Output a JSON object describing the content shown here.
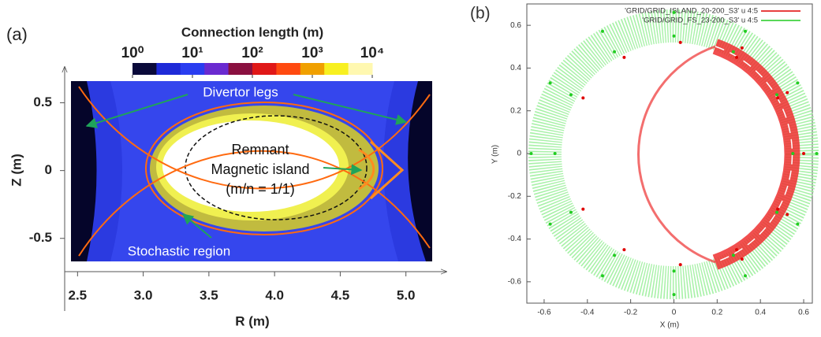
{
  "chart_data": [
    {
      "type": "image-map",
      "panel_label": "(a)",
      "xlabel": "R (m)",
      "ylabel": "Z (m)",
      "xlim": [
        2.45,
        5.2
      ],
      "xticks": [
        2.5,
        {
          "value": 3,
          "label": "3.0"
        },
        3.5,
        {
          "value": 4,
          "label": "4.0"
        },
        4.5,
        {
          "value": 5,
          "label": "5.0"
        }
      ],
      "ylim": [
        -0.67,
        0.66
      ],
      "yticks": [
        0.5,
        0,
        -0.5
      ],
      "colorbar": {
        "title": "Connection length (m)",
        "scale": "log",
        "clim": [
          1,
          10000
        ],
        "ticks": [
          {
            "value": 1,
            "label": "10⁰"
          },
          {
            "value": 10,
            "label": "10¹"
          },
          {
            "value": 100,
            "label": "10²"
          },
          {
            "value": 1000,
            "label": "10³"
          },
          {
            "value": 10000,
            "label": "10⁴"
          }
        ],
        "colors": [
          "#0a0a3a",
          "#1e2ad8",
          "#2a3df0",
          "#6a2ad0",
          "#8a1040",
          "#e01818",
          "#ff4a10",
          "#f0a000",
          "#f8f020",
          "#fff8b0"
        ]
      },
      "annotations": [
        "Divertor legs",
        "Remnant",
        "Magnetic island",
        "(m/n = 1/1)",
        "Stochastic region"
      ]
    },
    {
      "type": "scatter",
      "panel_label": "(b)",
      "xlabel": "X (m)",
      "ylabel": "Y (m)",
      "xlim": [
        -0.68,
        0.64
      ],
      "xticks": [
        -0.6,
        -0.4,
        -0.2,
        0,
        0.2,
        0.4,
        0.6
      ],
      "ylim": [
        -0.7,
        0.7
      ],
      "yticks": [
        0.6,
        0.4,
        0.2,
        0,
        -0.2,
        -0.4,
        -0.6
      ],
      "legend": "upper right",
      "series": [
        {
          "name": "'GRID/GRID_ISLAND_20-200_S3' u 4:5",
          "color": "#e00000",
          "x": [
            -0.42,
            -0.23,
            0.03,
            0.29,
            0.48,
            0.55,
            0.48,
            0.29,
            0.03,
            -0.23,
            -0.42,
            0.315,
            0.524,
            0.6,
            0.524,
            0.315
          ],
          "values": [
            -0.26,
            -0.45,
            -0.52,
            -0.45,
            -0.26,
            0,
            0.26,
            0.45,
            0.52,
            0.45,
            0.26,
            -0.494,
            -0.285,
            0,
            0.285,
            0.494
          ]
        },
        {
          "name": "'GRID/GRID_FS_23-200_S3' u 4:5",
          "color": "#22cc22",
          "x": [
            0.66,
            0.572,
            0.33,
            0,
            -0.33,
            -0.572,
            -0.66,
            -0.572,
            -0.33,
            0,
            0.33,
            0.572,
            0.55,
            0.476,
            0.275,
            0,
            -0.275,
            -0.476,
            -0.55,
            -0.476,
            -0.275,
            0,
            0.275,
            0.476
          ],
          "values": [
            0,
            0.33,
            0.572,
            0.66,
            0.572,
            0.33,
            0,
            -0.33,
            -0.572,
            -0.66,
            -0.572,
            -0.33,
            0,
            0.275,
            0.476,
            0.55,
            0.476,
            0.275,
            0,
            -0.275,
            -0.476,
            -0.55,
            -0.476,
            -0.275
          ]
        }
      ]
    }
  ]
}
